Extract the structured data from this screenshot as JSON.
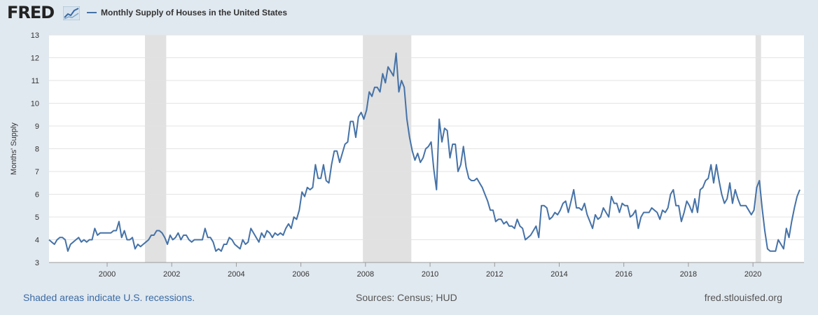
{
  "header": {
    "logo_text": "FRED",
    "logo_graph_icon": "line-graph-icon",
    "legend_label": "Monthly Supply of Houses in the United States"
  },
  "footer": {
    "recession_note": "Shaded areas indicate U.S. recessions.",
    "sources": "Sources: Census; HUD",
    "site": "fred.stlouisfed.org"
  },
  "colors": {
    "background": "#e1e9f0",
    "plot_background": "#ffffff",
    "series": "#4572a7",
    "recession": "#e1e1e1",
    "grid": "#e3e3e3"
  },
  "chart_data": {
    "type": "line",
    "title": "Monthly Supply of Houses in the United States",
    "xlabel": "",
    "ylabel": "Months' Supply",
    "xlim": [
      1998.2,
      2021.58
    ],
    "ylim": [
      3,
      13
    ],
    "y_ticks": [
      3,
      4,
      5,
      6,
      7,
      8,
      9,
      10,
      11,
      12,
      13
    ],
    "x_ticks": [
      2000,
      2002,
      2004,
      2006,
      2008,
      2010,
      2012,
      2014,
      2016,
      2018,
      2020
    ],
    "grid": true,
    "recessions": [
      [
        2001.17,
        2001.83
      ],
      [
        2007.92,
        2009.42
      ],
      [
        2020.08,
        2020.25
      ]
    ],
    "series": [
      {
        "name": "Monthly Supply of Houses in the United States",
        "start": 1998.2,
        "step": 0.08333,
        "values": [
          4.0,
          3.9,
          3.8,
          4.0,
          4.1,
          4.1,
          4.0,
          3.5,
          3.8,
          3.9,
          4.0,
          4.1,
          3.9,
          4.0,
          3.9,
          4.0,
          4.0,
          4.5,
          4.2,
          4.3,
          4.3,
          4.3,
          4.3,
          4.3,
          4.4,
          4.4,
          4.8,
          4.1,
          4.4,
          4.0,
          4.0,
          4.1,
          3.6,
          3.8,
          3.7,
          3.8,
          3.9,
          4.0,
          4.2,
          4.2,
          4.4,
          4.4,
          4.3,
          4.1,
          3.8,
          4.2,
          4.0,
          4.1,
          4.3,
          4.0,
          4.2,
          4.2,
          4.0,
          3.9,
          4.0,
          4.0,
          4.0,
          4.0,
          4.5,
          4.1,
          4.1,
          3.9,
          3.5,
          3.6,
          3.5,
          3.8,
          3.8,
          4.1,
          4.0,
          3.8,
          3.7,
          3.6,
          4.0,
          3.8,
          3.9,
          4.5,
          4.3,
          4.1,
          3.9,
          4.3,
          4.1,
          4.4,
          4.3,
          4.1,
          4.3,
          4.2,
          4.3,
          4.2,
          4.5,
          4.7,
          4.5,
          5.0,
          4.9,
          5.3,
          6.1,
          5.9,
          6.3,
          6.2,
          6.3,
          7.3,
          6.7,
          6.7,
          7.3,
          6.6,
          6.5,
          7.3,
          7.9,
          7.9,
          7.4,
          7.8,
          8.2,
          8.3,
          9.2,
          9.2,
          8.5,
          9.4,
          9.6,
          9.3,
          9.7,
          10.5,
          10.3,
          10.7,
          10.7,
          10.5,
          11.3,
          10.9,
          11.6,
          11.4,
          11.2,
          12.2,
          10.5,
          11.0,
          10.7,
          9.3,
          8.5,
          7.9,
          7.5,
          7.8,
          7.4,
          7.6,
          8.0,
          8.1,
          8.3,
          7.1,
          6.2,
          9.3,
          8.3,
          8.9,
          8.8,
          7.6,
          8.2,
          8.2,
          7.0,
          7.3,
          8.1,
          7.2,
          6.7,
          6.6,
          6.6,
          6.7,
          6.5,
          6.3,
          6.0,
          5.7,
          5.3,
          5.3,
          4.8,
          4.9,
          4.9,
          4.7,
          4.8,
          4.6,
          4.6,
          4.5,
          4.9,
          4.6,
          4.5,
          4.0,
          4.1,
          4.2,
          4.4,
          4.6,
          4.1,
          5.5,
          5.5,
          5.4,
          4.9,
          5.0,
          5.2,
          5.1,
          5.3,
          5.6,
          5.7,
          5.2,
          5.7,
          6.2,
          5.4,
          5.4,
          5.3,
          5.6,
          5.1,
          4.8,
          4.5,
          5.1,
          4.9,
          5.0,
          5.4,
          5.2,
          5.0,
          5.9,
          5.6,
          5.6,
          5.2,
          5.6,
          5.5,
          5.5,
          5.0,
          5.1,
          5.3,
          4.5,
          5.0,
          5.2,
          5.2,
          5.2,
          5.4,
          5.3,
          5.2,
          4.9,
          5.3,
          5.2,
          5.4,
          6.0,
          6.2,
          5.5,
          5.5,
          4.8,
          5.2,
          5.7,
          5.5,
          5.2,
          5.8,
          5.2,
          6.2,
          6.3,
          6.6,
          6.7,
          7.3,
          6.5,
          7.3,
          6.6,
          6.0,
          5.6,
          5.8,
          6.5,
          5.6,
          6.2,
          5.8,
          5.5,
          5.5,
          5.5,
          5.3,
          5.1,
          5.3,
          6.3,
          6.6,
          5.4,
          4.4,
          3.6,
          3.5,
          3.5,
          3.5,
          4.0,
          3.8,
          3.6,
          4.5,
          4.1,
          4.8,
          5.4,
          5.9,
          6.2
        ]
      }
    ]
  }
}
